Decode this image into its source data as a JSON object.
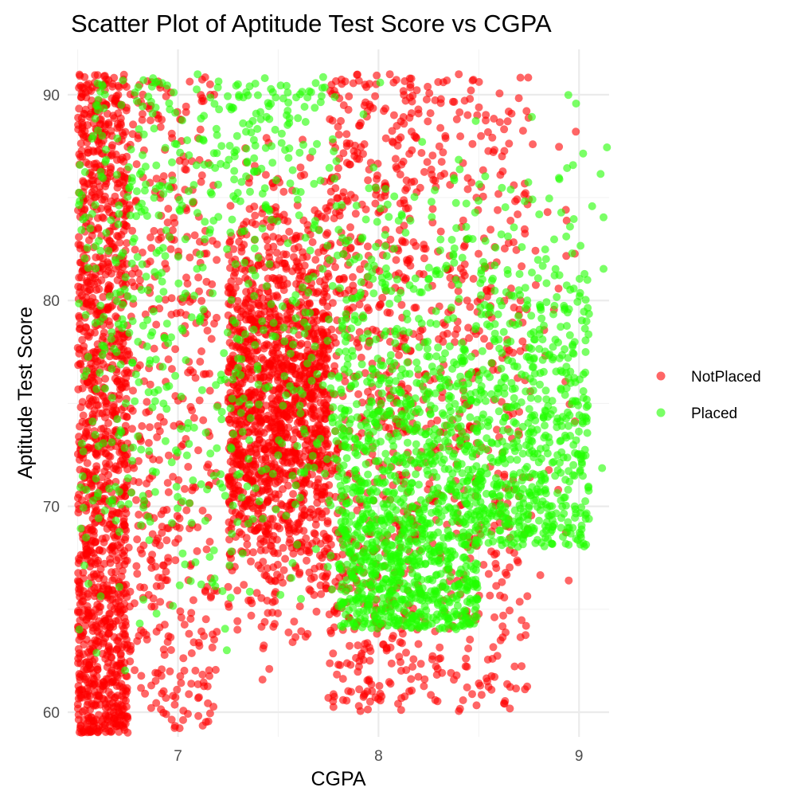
{
  "chart_data": {
    "type": "scatter",
    "title": "Scatter Plot of Aptitude Test Score vs CGPA",
    "xlabel": "CGPA",
    "ylabel": "Aptitude Test Score",
    "xlim": [
      6.45,
      9.15
    ],
    "ylim": [
      58.8,
      92.2
    ],
    "x_ticks": [
      7,
      8,
      9
    ],
    "y_ticks": [
      60,
      70,
      80,
      90
    ],
    "grid": true,
    "legend_position": "right",
    "point_opacity": 0.6,
    "series": [
      {
        "name": "NotPlaced",
        "color": "#ff0000",
        "clusters": [
          {
            "x_range": [
              6.5,
              6.75
            ],
            "y_range": [
              59,
              91
            ],
            "count": 1300,
            "y_bias": "low"
          },
          {
            "x_range": [
              6.75,
              7.2
            ],
            "y_range": [
              59,
              91
            ],
            "count": 450,
            "y_bias": "uniform"
          },
          {
            "x_range": [
              7.25,
              7.75
            ],
            "y_range": [
              59,
              91
            ],
            "count": 1500,
            "y_bias": "mid"
          },
          {
            "x_range": [
              7.75,
              8.2
            ],
            "y_range": [
              60,
              91
            ],
            "count": 650,
            "y_bias": "uniform"
          },
          {
            "x_range": [
              8.2,
              8.75
            ],
            "y_range": [
              60,
              91
            ],
            "count": 450,
            "y_bias": "uniform"
          },
          {
            "x_range": [
              8.75,
              9.0
            ],
            "y_range": [
              66,
              90
            ],
            "count": 25,
            "y_bias": "uniform"
          }
        ]
      },
      {
        "name": "Placed",
        "color": "#22ff00",
        "clusters": [
          {
            "x_range": [
              6.5,
              7.3
            ],
            "y_range": [
              62,
              91
            ],
            "count": 420,
            "y_bias": "high"
          },
          {
            "x_range": [
              7.3,
              7.8
            ],
            "y_range": [
              64,
              91
            ],
            "count": 250,
            "y_bias": "high"
          },
          {
            "x_range": [
              7.8,
              8.5
            ],
            "y_range": [
              64,
              91
            ],
            "count": 1250,
            "y_bias": "veryhigh"
          },
          {
            "x_range": [
              8.5,
              9.05
            ],
            "y_range": [
              68,
              91
            ],
            "count": 600,
            "y_bias": "veryhigh"
          },
          {
            "x_range": [
              8.9,
              9.15
            ],
            "y_range": [
              69,
              91
            ],
            "count": 14,
            "y_bias": "uniform"
          }
        ]
      }
    ]
  }
}
